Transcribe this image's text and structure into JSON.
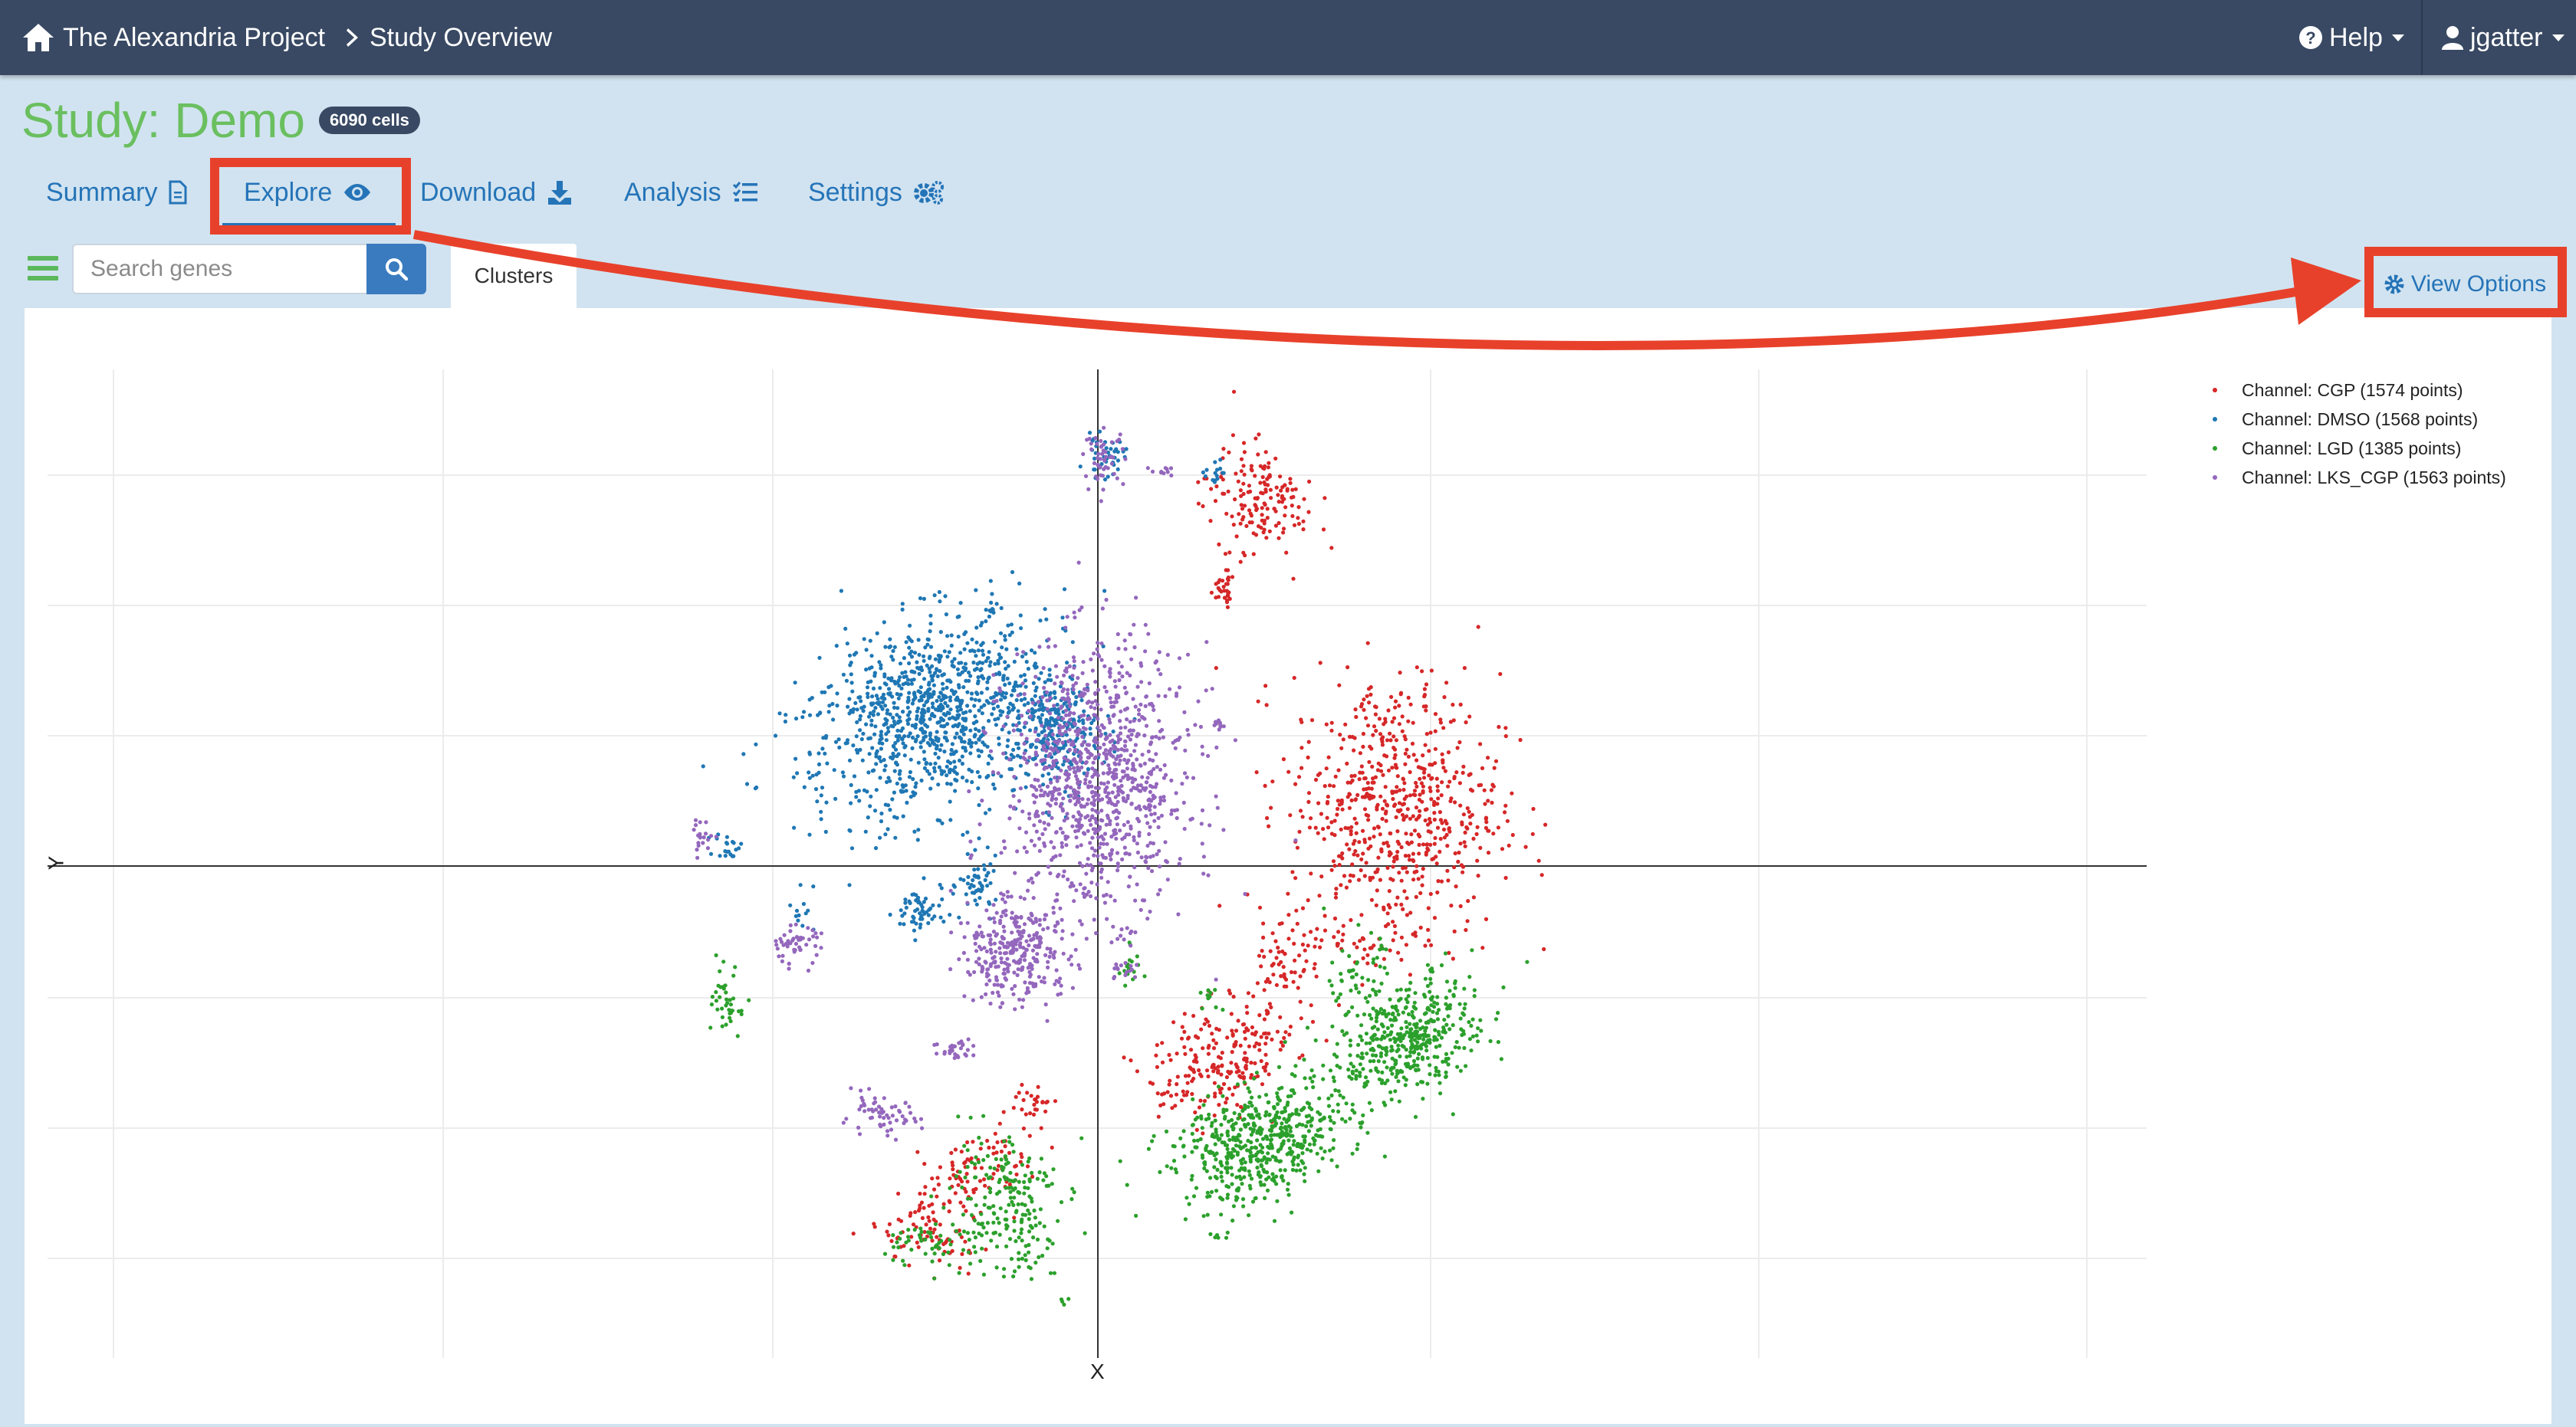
{
  "navbar": {
    "brand": "The Alexandria Project",
    "breadcrumb": "Study Overview",
    "help": "Help",
    "user": "jgatter"
  },
  "study": {
    "title": "Study: Demo",
    "badge": "6090 cells"
  },
  "tabs": [
    {
      "label": "Summary",
      "icon": "file-icon"
    },
    {
      "label": "Explore",
      "icon": "eye-icon"
    },
    {
      "label": "Download",
      "icon": "download-icon"
    },
    {
      "label": "Analysis",
      "icon": "tasks-icon"
    },
    {
      "label": "Settings",
      "icon": "cogs-icon"
    }
  ],
  "active_tab": "Explore",
  "search": {
    "placeholder": "Search genes",
    "value": ""
  },
  "plot_tabs": [
    "Clusters"
  ],
  "view_options": "View Options",
  "colors": {
    "navbar": "#394963",
    "accent": "#2574b8",
    "title_green": "#6abf5f",
    "highlight": "#e8412b"
  },
  "chart_data": {
    "type": "scatter",
    "xlabel": "X",
    "ylabel": "Y",
    "grid": true,
    "legend_position": "top-right",
    "series": [
      {
        "name": "Channel: CGP (1574 points)",
        "color": "#d62728",
        "count": 1574
      },
      {
        "name": "Channel: DMSO (1568 points)",
        "color": "#1f77b4",
        "count": 1568
      },
      {
        "name": "Channel: LGD (1385 points)",
        "color": "#2ca02c",
        "count": 1385
      },
      {
        "name": "Channel: LKS_CGP (1563 points)",
        "color": "#9467bd",
        "count": 1563
      }
    ],
    "clusters": [
      {
        "series": 1,
        "cx": -25,
        "cy": 23,
        "sx": 10,
        "sy": 7,
        "n": 1000,
        "rot": 0.45
      },
      {
        "series": 1,
        "cx": -6,
        "cy": 20,
        "sx": 3,
        "sy": 4,
        "n": 250,
        "rot": 0.2
      },
      {
        "series": 1,
        "cx": -18,
        "cy": -3,
        "sx": 1.5,
        "sy": 2,
        "n": 50,
        "rot": 0
      },
      {
        "series": 1,
        "cx": -27,
        "cy": -7,
        "sx": 2,
        "sy": 2,
        "n": 60,
        "rot": 0
      },
      {
        "series": 1,
        "cx": 1,
        "cy": 62,
        "sx": 1.5,
        "sy": 1.5,
        "n": 40,
        "rot": 0
      },
      {
        "series": 1,
        "cx": 18,
        "cy": 60,
        "sx": 1.5,
        "sy": 1.2,
        "n": 15,
        "rot": 0
      },
      {
        "series": 1,
        "cx": -56,
        "cy": 3,
        "sx": 1,
        "sy": 1,
        "n": 20,
        "rot": 0
      },
      {
        "series": 1,
        "cx": -45,
        "cy": -6,
        "sx": 1,
        "sy": 2,
        "n": 12,
        "rot": 0
      },
      {
        "series": 0,
        "cx": 45,
        "cy": 9,
        "sx": 8,
        "sy": 10,
        "n": 650,
        "rot": 0
      },
      {
        "series": 0,
        "cx": 24,
        "cy": 56,
        "sx": 4,
        "sy": 4,
        "n": 160,
        "rot": -0.3
      },
      {
        "series": 0,
        "cx": 19,
        "cy": 42,
        "sx": 1,
        "sy": 1.5,
        "n": 30,
        "rot": 0
      },
      {
        "series": 0,
        "cx": 19,
        "cy": -29,
        "sx": 6,
        "sy": 4,
        "n": 230,
        "rot": 0.6
      },
      {
        "series": 0,
        "cx": -21,
        "cy": -48,
        "sx": 6,
        "sy": 3,
        "n": 120,
        "rot": 0.6
      },
      {
        "series": 0,
        "cx": 28,
        "cy": -15,
        "sx": 2,
        "sy": 3,
        "n": 50,
        "rot": 0
      },
      {
        "series": 0,
        "cx": 40,
        "cy": -12,
        "sx": 6,
        "sy": 1.5,
        "n": 45,
        "rot": 0
      },
      {
        "series": 0,
        "cx": -10,
        "cy": -36,
        "sx": 1.5,
        "sy": 1.5,
        "n": 25,
        "rot": 0
      },
      {
        "series": 0,
        "cx": -24,
        "cy": -57,
        "sx": 4,
        "sy": 2,
        "n": 55,
        "rot": -0.4
      },
      {
        "series": 3,
        "cx": 0,
        "cy": 13,
        "sx": 7,
        "sy": 10,
        "n": 1000,
        "rot": 0
      },
      {
        "series": 3,
        "cx": -13,
        "cy": -13,
        "sx": 4,
        "sy": 4,
        "n": 300,
        "rot": 0.4
      },
      {
        "series": 3,
        "cx": -33,
        "cy": -38,
        "sx": 3,
        "sy": 1.5,
        "n": 60,
        "rot": 0
      },
      {
        "series": 3,
        "cx": -46,
        "cy": -12,
        "sx": 2,
        "sy": 1.5,
        "n": 50,
        "rot": 0
      },
      {
        "series": 3,
        "cx": 1,
        "cy": 62,
        "sx": 1.5,
        "sy": 2,
        "n": 50,
        "rot": 0
      },
      {
        "series": 3,
        "cx": 10,
        "cy": 60,
        "sx": 1,
        "sy": 0.5,
        "n": 10,
        "rot": 0
      },
      {
        "series": 3,
        "cx": -60,
        "cy": 4,
        "sx": 1,
        "sy": 1.5,
        "n": 20,
        "rot": 0
      },
      {
        "series": 3,
        "cx": 18,
        "cy": 22,
        "sx": 1,
        "sy": 0.5,
        "n": 10,
        "rot": 0
      },
      {
        "series": 3,
        "cx": 4,
        "cy": -16,
        "sx": 1.5,
        "sy": 1,
        "n": 15,
        "rot": 0
      },
      {
        "series": 3,
        "cx": -21,
        "cy": -28,
        "sx": 2,
        "sy": 1,
        "n": 30,
        "rot": 0
      },
      {
        "series": 2,
        "cx": 47,
        "cy": -26,
        "sx": 6,
        "sy": 4,
        "n": 450,
        "rot": 0.5
      },
      {
        "series": 2,
        "cx": 25,
        "cy": -42,
        "sx": 7,
        "sy": 4,
        "n": 550,
        "rot": 0.35
      },
      {
        "series": 2,
        "cx": -14,
        "cy": -51,
        "sx": 4,
        "sy": 6,
        "n": 200,
        "rot": 0.2
      },
      {
        "series": 2,
        "cx": -24,
        "cy": -57,
        "sx": 4,
        "sy": 2,
        "n": 60,
        "rot": 0.1
      },
      {
        "series": 2,
        "cx": -56,
        "cy": -21,
        "sx": 1.2,
        "sy": 2.5,
        "n": 40,
        "rot": 0
      },
      {
        "series": 2,
        "cx": 39,
        "cy": -16,
        "sx": 2,
        "sy": 3,
        "n": 40,
        "rot": 0
      },
      {
        "series": 2,
        "cx": 5,
        "cy": -15,
        "sx": 1,
        "sy": 1.5,
        "n": 20,
        "rot": 0
      },
      {
        "series": 2,
        "cx": 17,
        "cy": -20,
        "sx": 1,
        "sy": 1,
        "n": 10,
        "rot": 0
      },
      {
        "series": 2,
        "cx": 18,
        "cy": -56,
        "sx": 1,
        "sy": 0.5,
        "n": 6,
        "rot": 0
      },
      {
        "series": 2,
        "cx": -5,
        "cy": -66,
        "sx": 0.4,
        "sy": 0.4,
        "n": 4,
        "rot": 0
      }
    ]
  }
}
